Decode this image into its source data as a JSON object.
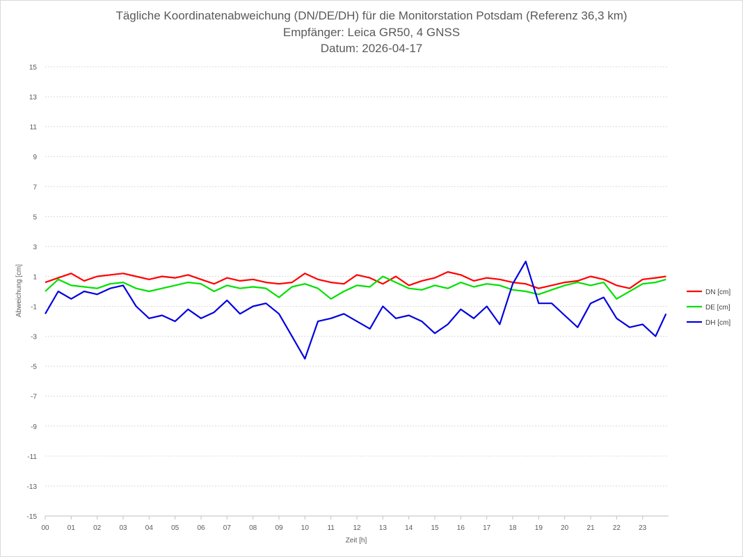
{
  "chart_data": {
    "type": "line",
    "title_lines": [
      "Tägliche Koordinatenabweichung (DN/DE/DH) für die Monitorstation Potsdam (Referenz 36,3 km)",
      "Empfänger: Leica GR50, 4 GNSS",
      "Datum: 2026-04-17"
    ],
    "xlabel": "Zeit [h]",
    "ylabel": "Abweichung [cm]",
    "xlim": [
      0,
      24
    ],
    "ylim": [
      -15,
      15
    ],
    "x_tick_labels": [
      "00",
      "01",
      "02",
      "03",
      "04",
      "05",
      "06",
      "07",
      "08",
      "09",
      "10",
      "11",
      "12",
      "13",
      "14",
      "15",
      "16",
      "17",
      "18",
      "19",
      "20",
      "21",
      "22",
      "23"
    ],
    "y_ticks": [
      15,
      13,
      11,
      9,
      7,
      5,
      3,
      1,
      -1,
      -3,
      -5,
      -7,
      -9,
      -11,
      -13,
      -15
    ],
    "y_tick_labels": [
      "15",
      "13",
      "11",
      "9",
      "7",
      "5",
      "3",
      "1",
      "-1",
      "-3",
      "-5",
      "-7",
      "-9",
      "-11",
      "-13",
      "-15"
    ],
    "grid": "horizontal dotted",
    "legend_position": "right",
    "x": [
      0,
      0.5,
      1,
      1.5,
      2,
      2.5,
      3,
      3.5,
      4,
      4.5,
      5,
      5.5,
      6,
      6.5,
      7,
      7.5,
      8,
      8.5,
      9,
      9.5,
      10,
      10.5,
      11,
      11.5,
      12,
      12.5,
      13,
      13.5,
      14,
      14.5,
      15,
      15.5,
      16,
      16.5,
      17,
      17.5,
      18,
      18.5,
      19,
      19.5,
      20,
      20.5,
      21,
      21.5,
      22,
      22.5,
      23,
      23.5,
      23.9
    ],
    "series": [
      {
        "name": "DN [cm]",
        "color": "#ff0000",
        "values": [
          0.6,
          0.9,
          1.2,
          0.7,
          1.0,
          1.1,
          1.2,
          1.0,
          0.8,
          1.0,
          0.9,
          1.1,
          0.8,
          0.5,
          0.9,
          0.7,
          0.8,
          0.6,
          0.5,
          0.6,
          1.2,
          0.8,
          0.6,
          0.5,
          1.1,
          0.9,
          0.5,
          1.0,
          0.4,
          0.7,
          0.9,
          1.3,
          1.1,
          0.7,
          0.9,
          0.8,
          0.6,
          0.5,
          0.2,
          0.4,
          0.6,
          0.7,
          1.0,
          0.8,
          0.4,
          0.2,
          0.8,
          0.9,
          1.0
        ]
      },
      {
        "name": "DE [cm]",
        "color": "#00e000",
        "values": [
          0.0,
          0.8,
          0.4,
          0.3,
          0.2,
          0.5,
          0.6,
          0.2,
          0.0,
          0.2,
          0.4,
          0.6,
          0.5,
          0.0,
          0.4,
          0.2,
          0.3,
          0.2,
          -0.4,
          0.3,
          0.5,
          0.2,
          -0.5,
          0.0,
          0.4,
          0.3,
          1.0,
          0.6,
          0.2,
          0.1,
          0.4,
          0.2,
          0.6,
          0.3,
          0.5,
          0.4,
          0.1,
          0.0,
          -0.2,
          0.1,
          0.4,
          0.6,
          0.4,
          0.6,
          -0.5,
          0.0,
          0.5,
          0.6,
          0.8
        ]
      },
      {
        "name": "DH [cm]",
        "color": "#0000e0",
        "values": [
          -1.5,
          0.0,
          -0.5,
          0.0,
          -0.2,
          0.2,
          0.4,
          -1.0,
          -1.8,
          -1.6,
          -2.0,
          -1.2,
          -1.8,
          -1.4,
          -0.6,
          -1.5,
          -1.0,
          -0.8,
          -1.5,
          -3.0,
          -4.5,
          -2.0,
          -1.8,
          -1.5,
          -2.0,
          -2.5,
          -1.0,
          -1.8,
          -1.6,
          -2.0,
          -2.8,
          -2.2,
          -1.2,
          -1.8,
          -1.0,
          -2.2,
          0.5,
          2.0,
          -0.8,
          -0.8,
          -1.6,
          -2.4,
          -0.8,
          -0.4,
          -1.8,
          -2.4,
          -2.2,
          -3.0,
          -1.5
        ]
      }
    ]
  }
}
